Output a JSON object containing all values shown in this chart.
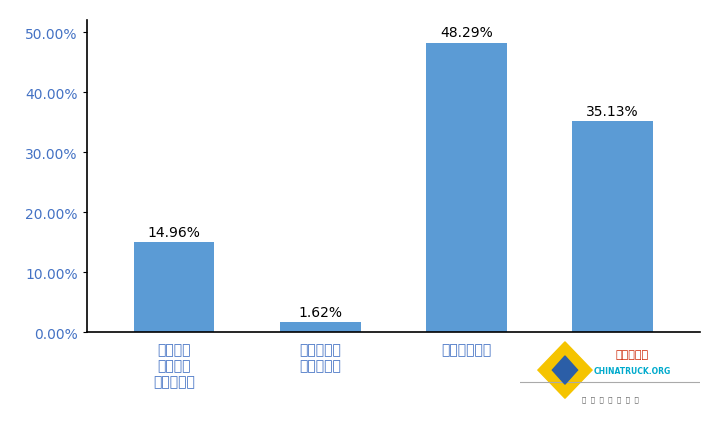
{
  "categories": [
    "参加所在\n单位组织\n的员工体检",
    "平台、园区\n组织的体检",
    "个人参加体检",
    ""
  ],
  "values": [
    0.1496,
    0.0162,
    0.4829,
    0.3513
  ],
  "value_labels": [
    "14.96%",
    "1.62%",
    "48.29%",
    "35.13%"
  ],
  "bar_color": "#5B9BD5",
  "ylim": [
    0,
    0.52
  ],
  "yticks": [
    0.0,
    0.1,
    0.2,
    0.3,
    0.4,
    0.5
  ],
  "ytick_labels": [
    "0.00%",
    "10.00%",
    "20.00%",
    "30.00%",
    "40.00%",
    "50.00%"
  ],
  "background_color": "#FFFFFF",
  "label_fontsize": 10,
  "value_fontsize": 10,
  "tick_fontsize": 10,
  "label_color": "#4472C4",
  "tick_color": "#4472C4"
}
